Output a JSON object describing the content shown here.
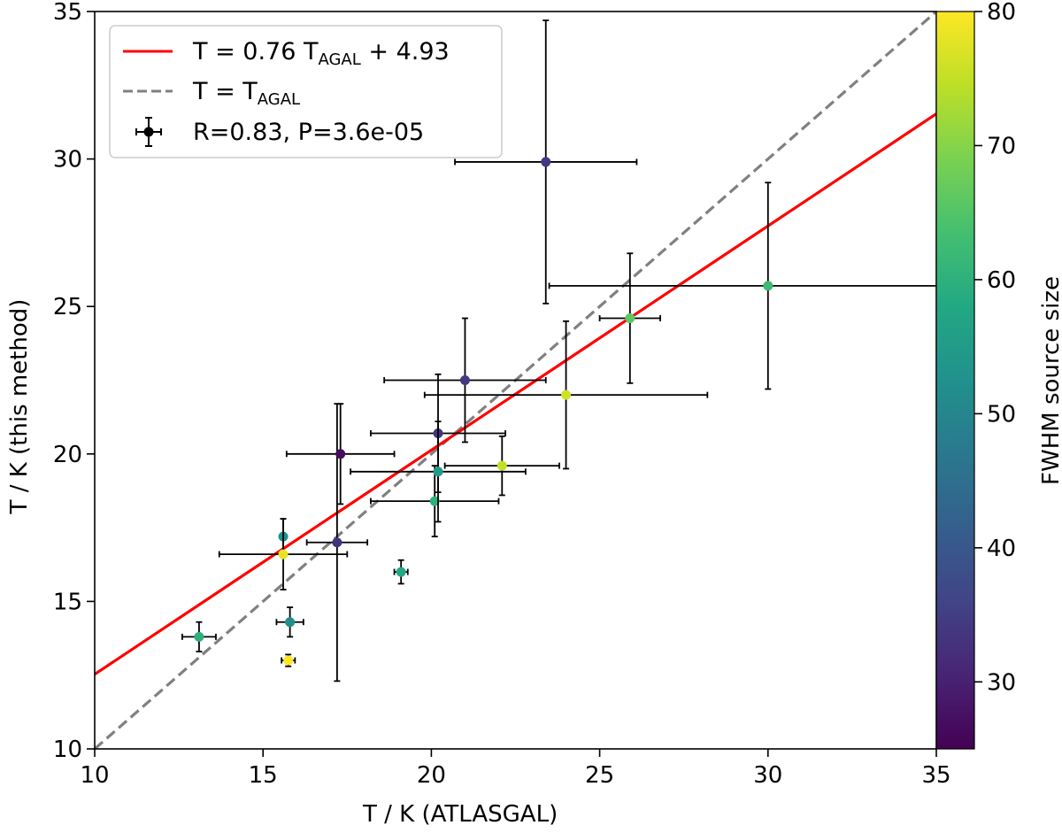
{
  "chart_data": {
    "type": "scatter",
    "xlabel": "T / K (ATLASGAL)",
    "ylabel": "T / K (this method)",
    "xlim": [
      10,
      35
    ],
    "ylim": [
      10,
      35
    ],
    "xticks": [
      "10",
      "15",
      "20",
      "25",
      "30",
      "35"
    ],
    "yticks": [
      "10",
      "15",
      "20",
      "25",
      "30",
      "35"
    ],
    "fit": {
      "slope": 0.76,
      "intercept": 4.93,
      "color": "#ff0000"
    },
    "identity": {
      "color": "#808080"
    },
    "legend": {
      "fit_prefix": "T = 0.76 T",
      "fit_sub": "AGAL",
      "fit_suffix": " + 4.93",
      "identity_prefix": "T = T",
      "identity_sub": "AGAL",
      "stats": "R=0.83, P=3.6e-05",
      "location": "upper-left"
    },
    "colorbar": {
      "label": "FWHM source size",
      "min": 25,
      "max": 80,
      "ticks": [
        "30",
        "40",
        "50",
        "60",
        "70",
        "80"
      ],
      "colormap": "viridis"
    },
    "points": [
      {
        "x": 13.1,
        "xerr": 0.5,
        "y": 13.8,
        "yerr": 0.5,
        "c": 60
      },
      {
        "x": 15.6,
        "xerr": 0.0,
        "y": 17.2,
        "yerr": 0.6,
        "c": 52
      },
      {
        "x": 15.6,
        "xerr": 1.9,
        "y": 16.6,
        "yerr": 1.2,
        "c": 78
      },
      {
        "x": 15.75,
        "xerr": 0.2,
        "y": 13.0,
        "yerr": 0.2,
        "c": 80
      },
      {
        "x": 15.8,
        "xerr": 0.4,
        "y": 14.3,
        "yerr": 0.5,
        "c": 52
      },
      {
        "x": 17.2,
        "xerr": 0.9,
        "y": 17.0,
        "yerr": 4.7,
        "c": 33
      },
      {
        "x": 17.3,
        "xerr": 1.6,
        "y": 20.0,
        "yerr": 1.7,
        "c": 27
      },
      {
        "x": 19.1,
        "xerr": 0.2,
        "y": 16.0,
        "yerr": 0.4,
        "c": 58
      },
      {
        "x": 20.1,
        "xerr": 1.9,
        "y": 18.4,
        "yerr": 1.2,
        "c": 60
      },
      {
        "x": 20.2,
        "xerr": 2.0,
        "y": 20.7,
        "yerr": 2.0,
        "c": 33
      },
      {
        "x": 20.2,
        "xerr": 2.6,
        "y": 19.4,
        "yerr": 1.7,
        "c": 55
      },
      {
        "x": 21.0,
        "xerr": 2.4,
        "y": 22.5,
        "yerr": 2.1,
        "c": 34
      },
      {
        "x": 22.1,
        "xerr": 1.7,
        "y": 19.6,
        "yerr": 1.0,
        "c": 75
      },
      {
        "x": 24.0,
        "xerr": 4.2,
        "y": 22.0,
        "yerr": 2.5,
        "c": 76
      },
      {
        "x": 23.4,
        "xerr": 2.7,
        "y": 29.9,
        "yerr": 4.8,
        "c": 34
      },
      {
        "x": 25.9,
        "xerr": 0.9,
        "y": 24.6,
        "yerr": 2.2,
        "c": 66
      },
      {
        "x": 30.0,
        "xerr": 6.5,
        "y": 25.7,
        "yerr": 3.5,
        "c": 62
      }
    ]
  }
}
